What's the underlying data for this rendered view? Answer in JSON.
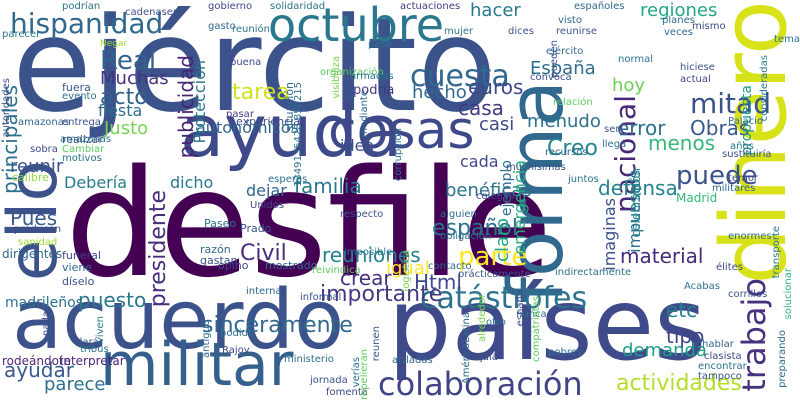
{
  "words": [
    {
      "text": "desfile",
      "color": "#440154"
    },
    {
      "text": "ejército",
      "color": "#3b528b"
    },
    {
      "text": "países",
      "color": "#3e4a89"
    },
    {
      "text": "acuerdo",
      "color": "#3b528b"
    },
    {
      "text": "ayuda",
      "color": "#3e4989"
    },
    {
      "text": "dinero",
      "color": "#d8e219"
    },
    {
      "text": "forma",
      "color": "#31688e"
    },
    {
      "text": "ello",
      "color": "#3b528b"
    },
    {
      "text": "militar",
      "color": "#355f8d"
    },
    {
      "text": "cosas",
      "color": "#3e4989"
    },
    {
      "text": "octubre",
      "color": "#2a788e"
    },
    {
      "text": "colaboración",
      "color": "#414487"
    },
    {
      "text": "catástrofes",
      "color": "#2c728e"
    },
    {
      "text": "trabajo",
      "color": "#46327e"
    },
    {
      "text": "actividades",
      "color": "#b5de2b"
    },
    {
      "text": "hispanidad",
      "color": "#31688e"
    },
    {
      "text": "cuesta",
      "color": "#31688e"
    },
    {
      "text": "mitad",
      "color": "#3b528b"
    },
    {
      "text": "nacional",
      "color": "#482878"
    },
    {
      "text": "presidente",
      "color": "#472d7b"
    },
    {
      "text": "importante",
      "color": "#443983"
    },
    {
      "text": "Real",
      "color": "#33638d"
    },
    {
      "text": "tarea",
      "color": "#d2e21b"
    },
    {
      "text": "Civil",
      "color": "#472d7b"
    },
    {
      "text": "parte",
      "color": "#fde725"
    },
    {
      "text": "familia",
      "color": "#2a788e"
    },
    {
      "text": "puede",
      "color": "#3b528b"
    },
    {
      "text": "menos",
      "color": "#35b779"
    },
    {
      "text": "acto",
      "color": "#34608d"
    },
    {
      "text": "ayudar",
      "color": "#38598c"
    },
    {
      "text": "principales",
      "color": "#2c728e"
    },
    {
      "text": "publicidad",
      "color": "#482475"
    },
    {
      "text": "euros",
      "color": "#3e4989"
    },
    {
      "text": "casa",
      "color": "#453781"
    },
    {
      "text": "Creo",
      "color": "#24868e"
    },
    {
      "text": "reuniones",
      "color": "#26828e"
    },
    {
      "text": "español",
      "color": "#2c728e"
    },
    {
      "text": "igual",
      "color": "#fde725"
    },
    {
      "text": "crear",
      "color": "#46327e"
    },
    {
      "text": "Html",
      "color": "#3e4989"
    },
    {
      "text": "sinceramente",
      "color": "#31688e"
    },
    {
      "text": "puesto",
      "color": "#2a788e"
    },
    {
      "text": "parece",
      "color": "#2c728e"
    },
    {
      "text": "demanda",
      "color": "#1f9e89"
    },
    {
      "text": "tipo",
      "color": "#3f4788"
    },
    {
      "text": "etc",
      "color": "#277f8e"
    },
    {
      "text": "defensa",
      "color": "#26828e"
    },
    {
      "text": "material",
      "color": "#472a7a"
    },
    {
      "text": "error",
      "color": "#2d708e"
    },
    {
      "text": "Obras",
      "color": "#38598c"
    },
    {
      "text": "regiones",
      "color": "#22a785"
    },
    {
      "text": "hacer",
      "color": "#2a788e"
    },
    {
      "text": "España",
      "color": "#2f6c8e"
    },
    {
      "text": "casi",
      "color": "#3e4989"
    },
    {
      "text": "menudo",
      "color": "#2c728e"
    },
    {
      "text": "hecho",
      "color": "#31688e"
    },
    {
      "text": "hoy",
      "color": "#6ece58"
    },
    {
      "text": "propuesta",
      "color": "#1f9a8a"
    },
    {
      "text": "Muchas",
      "color": "#46337f"
    },
    {
      "text": "Justo",
      "color": "#7ad151"
    },
    {
      "text": "fiesta",
      "color": "#2f6c8e"
    },
    {
      "text": "autonómicos",
      "color": "#31688e"
    },
    {
      "text": "podría",
      "color": "#453882"
    },
    {
      "text": "idea",
      "color": "#3b528b"
    },
    {
      "text": "Protección",
      "color": "#2a788e"
    },
    {
      "text": "reunir",
      "color": "#3b528b"
    },
    {
      "text": "Debería",
      "color": "#287d8e"
    },
    {
      "text": "dicho",
      "color": "#2a788e"
    },
    {
      "text": "cada",
      "color": "#3f4889"
    },
    {
      "text": "dejar",
      "color": "#31688e"
    },
    {
      "text": "benéficas",
      "color": "#2c728e"
    },
    {
      "text": "claro",
      "color": "#22a785"
    },
    {
      "text": "emergencia",
      "color": "#29af7f"
    },
    {
      "text": "imaginas",
      "color": "#3b528b"
    },
    {
      "text": "impuestos",
      "color": "#2c728e"
    },
    {
      "text": "celebración",
      "color": "#24878e"
    },
    {
      "text": "ejemplo",
      "color": "#2d708e"
    },
    {
      "text": "Pues",
      "color": "#38598c"
    },
    {
      "text": "madrileños",
      "color": "#2c728e"
    },
    {
      "text": "mostrado",
      "color": "#31688e"
    },
    {
      "text": "Paseo",
      "color": "#2c728e"
    },
    {
      "text": "Prado",
      "color": "#3b528b"
    },
    {
      "text": "opino",
      "color": "#3e4989"
    },
    {
      "text": "gastan",
      "color": "#3b528b"
    },
    {
      "text": "razón",
      "color": "#31688e"
    },
    {
      "text": "interpretar",
      "color": "#482475"
    },
    {
      "text": "rodeándote",
      "color": "#482878"
    },
    {
      "text": "dirigentes",
      "color": "#31688e"
    },
    {
      "text": "díselo",
      "color": "#3b528b"
    },
    {
      "text": "viene",
      "color": "#31688e"
    },
    {
      "text": "funeral",
      "color": "#414487"
    },
    {
      "text": "producen",
      "color": "#3e4989"
    },
    {
      "text": "calibre",
      "color": "#90d743"
    },
    {
      "text": "sanidad",
      "color": "#a0da39"
    },
    {
      "text": "sobra",
      "color": "#3e4989"
    },
    {
      "text": "realizar",
      "color": "#3b528b"
    },
    {
      "text": "Cambiar",
      "color": "#5ec962"
    },
    {
      "text": "motivos",
      "color": "#2c728e"
    },
    {
      "text": "amazonas",
      "color": "#31688e"
    },
    {
      "text": "entrega",
      "color": "#3b528b"
    },
    {
      "text": "evento",
      "color": "#2c728e"
    },
    {
      "text": "fuera",
      "color": "#38598c"
    },
    {
      "text": "autoridades",
      "color": "#3e4989"
    },
    {
      "text": "podrían",
      "color": "#2c728e"
    },
    {
      "text": "parecer",
      "color": "#2a788e"
    },
    {
      "text": "cadenaser",
      "color": "#3b528b"
    },
    {
      "text": "gobierno",
      "color": "#3e4989"
    },
    {
      "text": "gasto",
      "color": "#31688e"
    },
    {
      "text": "reunión",
      "color": "#2c728e"
    },
    {
      "text": "actuaciones",
      "color": "#443983"
    },
    {
      "text": "visto",
      "color": "#31688e"
    },
    {
      "text": "reunirse",
      "color": "#3b528b"
    },
    {
      "text": "planes",
      "color": "#2c728e"
    },
    {
      "text": "mismo",
      "color": "#3e4989"
    },
    {
      "text": "veces",
      "color": "#31688e"
    },
    {
      "text": "dices",
      "color": "#3b528b"
    },
    {
      "text": "mujer",
      "color": "#2a788e"
    },
    {
      "text": "pase",
      "color": "#2c728e"
    },
    {
      "text": "Negar",
      "color": "#a0da39"
    },
    {
      "text": "buena",
      "color": "#3e4989"
    },
    {
      "text": "pasar",
      "color": "#443983"
    },
    {
      "text": "experiencia",
      "color": "#3b528b"
    },
    {
      "text": "situación",
      "color": "#31688e"
    },
    {
      "text": "1349135428 850215",
      "color": "#2c728e"
    },
    {
      "text": "organización",
      "color": "#5ec962"
    },
    {
      "text": "armadas",
      "color": "#2a788e"
    },
    {
      "text": "visibiliza",
      "color": "#7ad151"
    },
    {
      "text": "mediante",
      "color": "#31688e"
    },
    {
      "text": "convoca",
      "color": "#3b528b"
    },
    {
      "text": "ejército",
      "color": "#31688e"
    },
    {
      "text": "normal",
      "color": "#2c728e"
    },
    {
      "text": "hiciese",
      "color": "#3b528b"
    },
    {
      "text": "actual",
      "color": "#3e4989"
    },
    {
      "text": "consideradas",
      "color": "#2a788e"
    },
    {
      "text": "tema",
      "color": "#2c728e"
    },
    {
      "text": "relación",
      "color": "#5ec962"
    },
    {
      "text": "Palacio",
      "color": "#31688e"
    },
    {
      "text": "años",
      "color": "#2c728e"
    },
    {
      "text": "sustituiría",
      "color": "#3b528b"
    },
    {
      "text": "temor",
      "color": "#3e4989"
    },
    {
      "text": "militares",
      "color": "#31688e"
    },
    {
      "text": "Madrid",
      "color": "#35b779"
    },
    {
      "text": "llega",
      "color": "#2c728e"
    },
    {
      "text": "ser",
      "color": "#3b528b"
    },
    {
      "text": "recursos",
      "color": "#31688e"
    },
    {
      "text": "corrupción",
      "color": "#2c728e"
    },
    {
      "text": "muchísimas",
      "color": "#3b528b"
    },
    {
      "text": "juntos",
      "color": "#2c728e"
    },
    {
      "text": "colegas",
      "color": "#3e4989"
    },
    {
      "text": "alguien",
      "color": "#31688e"
    },
    {
      "text": "obligación",
      "color": "#2c728e"
    },
    {
      "text": "respecto",
      "color": "#3b528b"
    },
    {
      "text": "esperas",
      "color": "#2c728e"
    },
    {
      "text": "Unidos",
      "color": "#3e4989"
    },
    {
      "text": "logística",
      "color": "#7ad151"
    },
    {
      "text": "imposible",
      "color": "#2a788e"
    },
    {
      "text": "reivindica",
      "color": "#5ec962"
    },
    {
      "text": "contacto",
      "color": "#31688e"
    },
    {
      "text": "prácticamente",
      "color": "#3b528b"
    },
    {
      "text": "indirectamente",
      "color": "#2c728e"
    },
    {
      "text": "élites",
      "color": "#3e4989"
    },
    {
      "text": "enormes",
      "color": "#31688e"
    },
    {
      "text": "transporte",
      "color": "#2c728e"
    },
    {
      "text": "solucionar",
      "color": "#35b779"
    },
    {
      "text": "corrillos",
      "color": "#3b528b"
    },
    {
      "text": "Acabas",
      "color": "#2c728e"
    },
    {
      "text": "hablar",
      "color": "#31688e"
    },
    {
      "text": "clasista",
      "color": "#3e4989"
    },
    {
      "text": "encontrar",
      "color": "#2c728e"
    },
    {
      "text": "tampoco",
      "color": "#3b528b"
    },
    {
      "text": "preparando",
      "color": "#31688e"
    },
    {
      "text": "nunca",
      "color": "#2c728e"
    },
    {
      "text": "ojalá",
      "color": "#3b528b"
    },
    {
      "text": "pobres",
      "color": "#2c728e"
    },
    {
      "text": "compatriotas",
      "color": "#5ec962"
    },
    {
      "text": "españa",
      "color": "#3e4989"
    },
    {
      "text": "AméricaLatina",
      "color": "#31688e"
    },
    {
      "text": "alrededor",
      "color": "#7ad151"
    },
    {
      "text": "otro",
      "color": "#2c728e"
    },
    {
      "text": "reunen",
      "color": "#3b528b"
    },
    {
      "text": "aisladas",
      "color": "#31688e"
    },
    {
      "text": "ministerio",
      "color": "#2c728e"
    },
    {
      "text": "jornada",
      "color": "#3b528b"
    },
    {
      "text": "fomenta",
      "color": "#3e4989"
    },
    {
      "text": "repelieran",
      "color": "#5ec962"
    },
    {
      "text": "verías",
      "color": "#2c728e"
    },
    {
      "text": "interna",
      "color": "#31688e"
    },
    {
      "text": "informal",
      "color": "#3b528b"
    },
    {
      "text": "podido",
      "color": "#2c728e"
    },
    {
      "text": "Rajoy",
      "color": "#3e4989"
    },
    {
      "text": "antiguo",
      "color": "#31688e"
    },
    {
      "text": "tribus",
      "color": "#2c728e"
    },
    {
      "text": "dará",
      "color": "#3b528b"
    },
    {
      "text": "viven",
      "color": "#2a788e"
    },
    {
      "text": "nada",
      "color": "#3e4989"
    },
    {
      "text": "solidaridad",
      "color": "#2c728e"
    },
    {
      "text": "pueden",
      "color": "#3b528b"
    },
    {
      "text": "españoles",
      "color": "#31688e"
    },
    {
      "text": "amazonas",
      "color": "#2c728e"
    }
  ]
}
